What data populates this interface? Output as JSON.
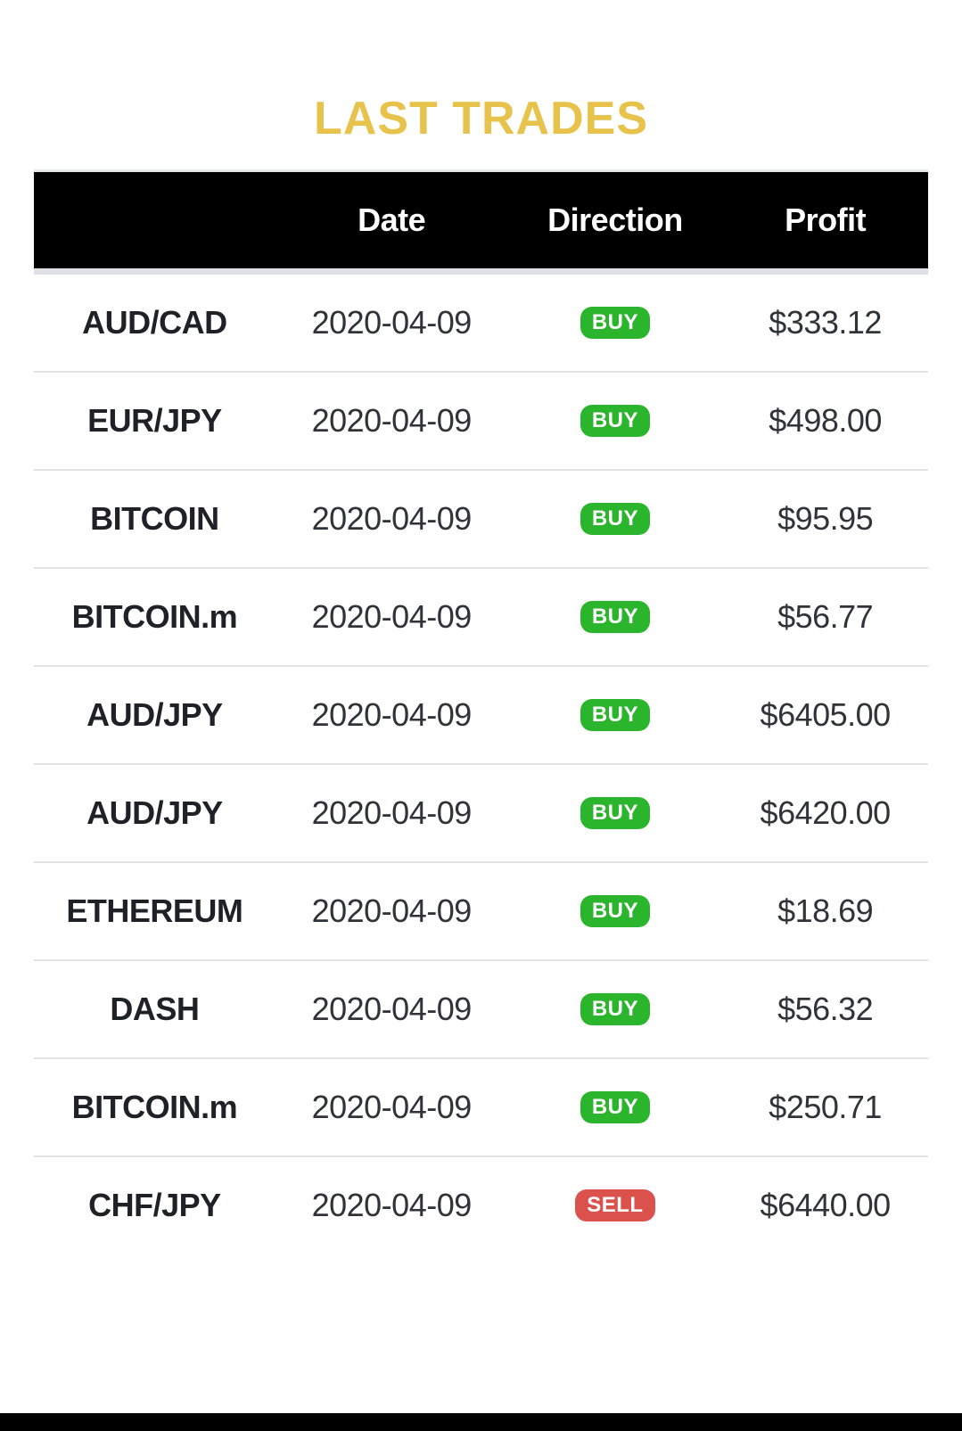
{
  "page": {
    "title": "LAST TRADES"
  },
  "table": {
    "headers": [
      "",
      "Date",
      "Direction",
      "Profit"
    ],
    "rows": [
      {
        "symbol": "AUD/CAD",
        "date": "2020-04-09",
        "direction": "BUY",
        "profit": "$333.12"
      },
      {
        "symbol": "EUR/JPY",
        "date": "2020-04-09",
        "direction": "BUY",
        "profit": "$498.00"
      },
      {
        "symbol": "BITCOIN",
        "date": "2020-04-09",
        "direction": "BUY",
        "profit": "$95.95"
      },
      {
        "symbol": "BITCOIN.m",
        "date": "2020-04-09",
        "direction": "BUY",
        "profit": "$56.77"
      },
      {
        "symbol": "AUD/JPY",
        "date": "2020-04-09",
        "direction": "BUY",
        "profit": "$6405.00"
      },
      {
        "symbol": "AUD/JPY",
        "date": "2020-04-09",
        "direction": "BUY",
        "profit": "$6420.00"
      },
      {
        "symbol": "ETHEREUM",
        "date": "2020-04-09",
        "direction": "BUY",
        "profit": "$18.69"
      },
      {
        "symbol": "DASH",
        "date": "2020-04-09",
        "direction": "BUY",
        "profit": "$56.32"
      },
      {
        "symbol": "BITCOIN.m",
        "date": "2020-04-09",
        "direction": "BUY",
        "profit": "$250.71"
      },
      {
        "symbol": "CHF/JPY",
        "date": "2020-04-09",
        "direction": "SELL",
        "profit": "$6440.00"
      }
    ]
  },
  "colors": {
    "title_gold": "#e8c34c",
    "header_bg": "#000000",
    "buy_green": "#2bb52c",
    "sell_red": "#db524c",
    "separator_gray": "#e2e2e2"
  }
}
